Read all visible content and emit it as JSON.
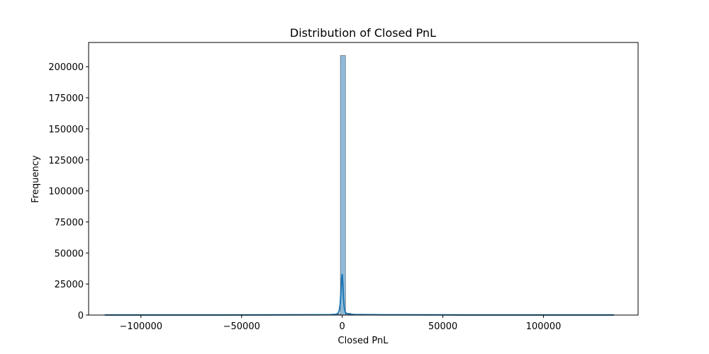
{
  "chart_data": {
    "type": "bar",
    "title": "Distribution of Closed PnL",
    "xlabel": "Closed PnL",
    "ylabel": "Frequency",
    "xlim": [
      -126000,
      147000
    ],
    "ylim": [
      0,
      219500
    ],
    "x_ticks": [
      -100000,
      -50000,
      0,
      50000,
      100000
    ],
    "x_tick_labels": [
      "−100000",
      "−50000",
      "0",
      "50000",
      "100000"
    ],
    "y_ticks": [
      0,
      25000,
      50000,
      75000,
      100000,
      125000,
      150000,
      175000,
      200000
    ],
    "y_tick_labels": [
      "0",
      "25000",
      "50000",
      "75000",
      "100000",
      "125000",
      "150000",
      "175000",
      "200000"
    ],
    "grid": false,
    "bar_color": "#1f77b4",
    "bar_alpha": 0.5,
    "histogram": {
      "bin_width": 2540,
      "bins": [
        {
          "x0": -118000,
          "count": 3
        },
        {
          "x0": -80000,
          "count": 2
        },
        {
          "x0": -40000,
          "count": 5
        },
        {
          "x0": -12000,
          "count": 40
        },
        {
          "x0": -6000,
          "count": 150
        },
        {
          "x0": -3460,
          "count": 700
        },
        {
          "x0": -920,
          "count": 209000
        },
        {
          "x0": 1620,
          "count": 1500
        },
        {
          "x0": 4160,
          "count": 120
        },
        {
          "x0": 9000,
          "count": 30
        },
        {
          "x0": 40000,
          "count": 6
        },
        {
          "x0": 90000,
          "count": 3
        },
        {
          "x0": 133000,
          "count": 2
        }
      ]
    },
    "kde": {
      "name": "density",
      "color": "#1f77b4",
      "x": [
        -118000,
        -60000,
        -20000,
        -6000,
        -3000,
        -2000,
        -1500,
        -1000,
        -600,
        -300,
        0,
        300,
        600,
        1000,
        1500,
        2000,
        3000,
        6000,
        20000,
        60000,
        100000,
        135000
      ],
      "y": [
        100,
        100,
        200,
        300,
        600,
        1500,
        3500,
        9000,
        20000,
        30000,
        33000,
        26000,
        14000,
        6000,
        2500,
        1500,
        800,
        400,
        200,
        100,
        100,
        100
      ]
    }
  }
}
